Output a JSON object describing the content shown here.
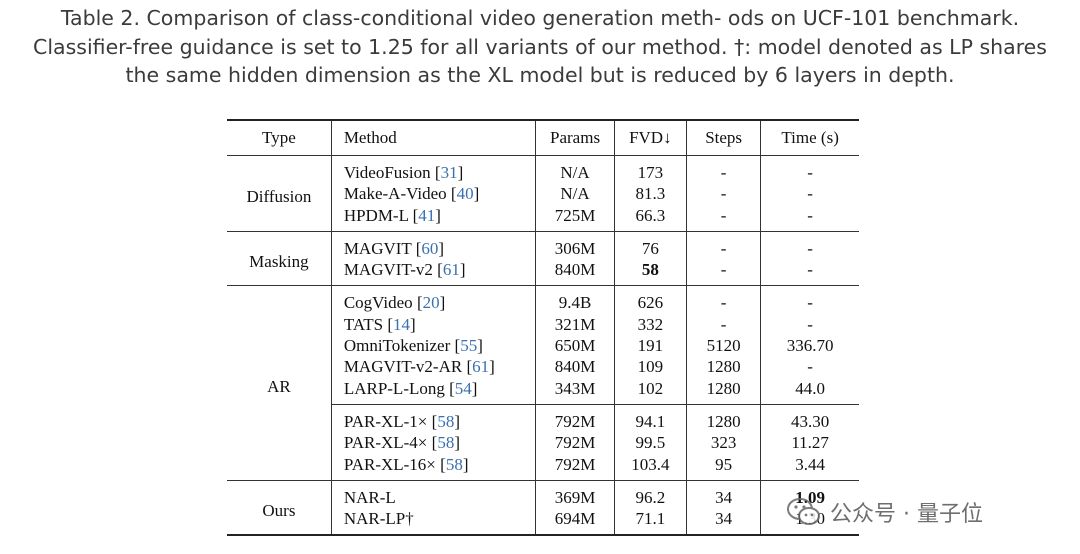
{
  "caption": {
    "line1": "Table 2. Comparison of class-conditional video generation meth- ods on UCF-101 benchmark.",
    "line2": "Classifier-free guidance is set to 1.25 for all variants of our method. †: model denoted as LP shares",
    "line3": "the same hidden dimension as the XL model but is reduced by 6 layers in depth."
  },
  "table": {
    "headers": [
      "Type",
      "Method",
      "Params",
      "FVD↓",
      "Steps",
      "Time (s)"
    ],
    "groups": [
      {
        "type": "Diffusion",
        "rows": [
          {
            "method": "VideoFusion",
            "cite": "31",
            "params": "N/A",
            "fvd": "173",
            "steps": "-",
            "time": "-"
          },
          {
            "method": "Make-A-Video",
            "cite": "40",
            "params": "N/A",
            "fvd": "81.3",
            "steps": "-",
            "time": "-"
          },
          {
            "method": "HPDM-L",
            "cite": "41",
            "params": "725M",
            "fvd": "66.3",
            "steps": "-",
            "time": "-"
          }
        ]
      },
      {
        "type": "Masking",
        "rows": [
          {
            "method": "MAGVIT",
            "cite": "60",
            "params": "306M",
            "fvd": "76",
            "steps": "-",
            "time": "-"
          },
          {
            "method": "MAGVIT-v2",
            "cite": "61",
            "params": "840M",
            "fvd": "58",
            "steps": "-",
            "time": "-"
          }
        ]
      },
      {
        "type": "AR",
        "rows": [
          {
            "method": "CogVideo",
            "cite": "20",
            "params": "9.4B",
            "fvd": "626",
            "steps": "-",
            "time": "-"
          },
          {
            "method": "TATS",
            "cite": "14",
            "params": "321M",
            "fvd": "332",
            "steps": "-",
            "time": "-"
          },
          {
            "method": "OmniTokenizer",
            "cite": "55",
            "params": "650M",
            "fvd": "191",
            "steps": "5120",
            "time": "336.70"
          },
          {
            "method": "MAGVIT-v2-AR",
            "cite": "61",
            "params": "840M",
            "fvd": "109",
            "steps": "1280",
            "time": "-"
          },
          {
            "method": "LARP-L-Long",
            "cite": "54",
            "params": "343M",
            "fvd": "102",
            "steps": "1280",
            "time": "44.0"
          },
          {
            "method": "PAR-XL-1×",
            "cite": "58",
            "params": "792M",
            "fvd": "94.1",
            "steps": "1280",
            "time": "43.30"
          },
          {
            "method": "PAR-XL-4×",
            "cite": "58",
            "params": "792M",
            "fvd": "99.5",
            "steps": "323",
            "time": "11.27"
          },
          {
            "method": "PAR-XL-16×",
            "cite": "58",
            "params": "792M",
            "fvd": "103.4",
            "steps": "95",
            "time": "3.44"
          }
        ]
      },
      {
        "type": "Ours",
        "rows": [
          {
            "method": "NAR-L",
            "cite": "",
            "params": "369M",
            "fvd": "96.2",
            "steps": "34",
            "time": "1.09"
          },
          {
            "method": "NAR-LP†",
            "cite": "",
            "params": "694M",
            "fvd": "71.1",
            "steps": "34",
            "time": "1.30"
          }
        ]
      }
    ]
  },
  "watermark": {
    "text": "公众号 · 量子位",
    "icon": "wechat-icon"
  }
}
